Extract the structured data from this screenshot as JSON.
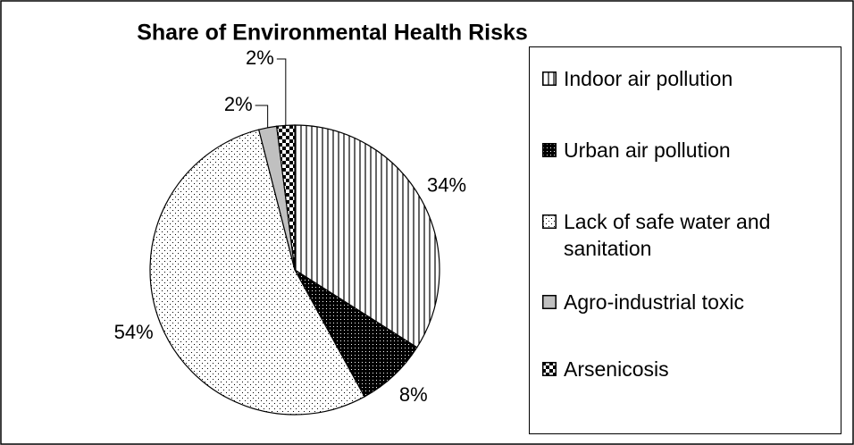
{
  "chart_data": {
    "type": "pie",
    "title": "Share of Environmental Health Risks",
    "categories": [
      "Indoor air pollution",
      "Urban air pollution",
      "Lack of safe water and sanitation",
      "Agro-industrial toxic",
      "Arsenicosis"
    ],
    "values": [
      34,
      8,
      54,
      2,
      2
    ],
    "value_labels": [
      "34%",
      "8%",
      "54%",
      "2%",
      "2%"
    ]
  }
}
